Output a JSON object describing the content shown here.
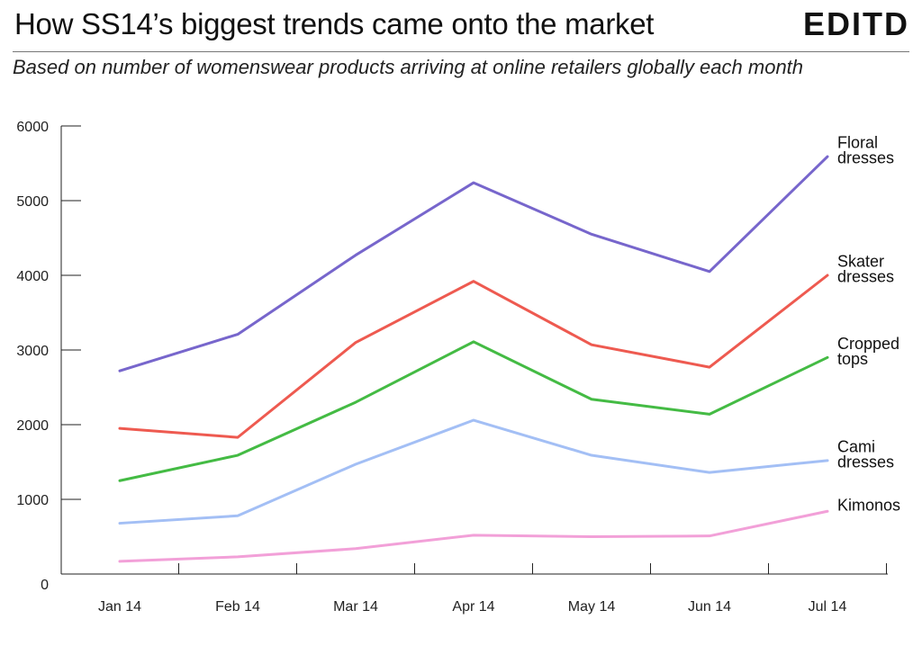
{
  "header": {
    "title": "How SS14’s biggest trends came onto the market",
    "brand": "EDITD",
    "subtitle": "Based on number of womenswear products arriving at online retailers globally each month"
  },
  "chart_data": {
    "type": "line",
    "categories": [
      "Jan 14",
      "Feb 14",
      "Mar 14",
      "Apr 14",
      "May 14",
      "Jun 14",
      "Jul 14"
    ],
    "ylim": [
      0,
      6000
    ],
    "yticks": [
      0,
      1000,
      2000,
      3000,
      4000,
      5000,
      6000
    ],
    "grid": false,
    "legend": "inline labels at right end of lines",
    "series": [
      {
        "name": "Floral dresses",
        "label_lines": [
          "Floral",
          "dresses"
        ],
        "color": "#7766cc",
        "values": [
          2720,
          3210,
          4270,
          5240,
          4550,
          4050,
          5590
        ]
      },
      {
        "name": "Skater dresses",
        "label_lines": [
          "Skater",
          "dresses"
        ],
        "color": "#ee5a50",
        "values": [
          1950,
          1830,
          3100,
          3920,
          3070,
          2770,
          4000
        ]
      },
      {
        "name": "Cropped tops",
        "label_lines": [
          "Cropped",
          "tops"
        ],
        "color": "#44bb44",
        "values": [
          1250,
          1590,
          2300,
          3110,
          2340,
          2140,
          2900
        ]
      },
      {
        "name": "Cami dresses",
        "label_lines": [
          "Cami",
          "dresses"
        ],
        "color": "#a3bff5",
        "values": [
          680,
          780,
          1470,
          2060,
          1590,
          1360,
          1520
        ]
      },
      {
        "name": "Kimonos",
        "label_lines": [
          "Kimonos"
        ],
        "color": "#f2a0d8",
        "values": [
          170,
          230,
          340,
          520,
          500,
          510,
          840
        ]
      }
    ]
  }
}
